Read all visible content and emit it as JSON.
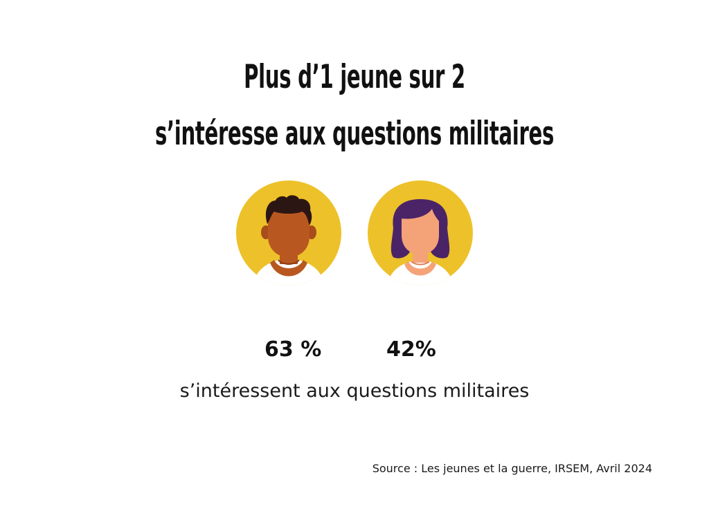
{
  "title": {
    "line1": "Plus d’1 jeune sur 2",
    "line2": "s’intéresse aux questions militaires"
  },
  "avatars": [
    {
      "icon": "young-man-avatar-icon",
      "accent": "#edc12a",
      "skin": "#b85820",
      "hair": "#2c1614"
    },
    {
      "icon": "young-woman-avatar-icon",
      "accent": "#edc12a",
      "skin": "#f4a378",
      "hair": "#4b2468"
    }
  ],
  "stats": {
    "male": "63 %",
    "female": "42%",
    "caption": "s’intéressent aux questions militaires"
  },
  "source": "Source : Les jeunes et la guerre, IRSEM, Avril 2024",
  "colors": {
    "circle": "#edc12a",
    "text": "#111111",
    "background": "#ffffff"
  }
}
